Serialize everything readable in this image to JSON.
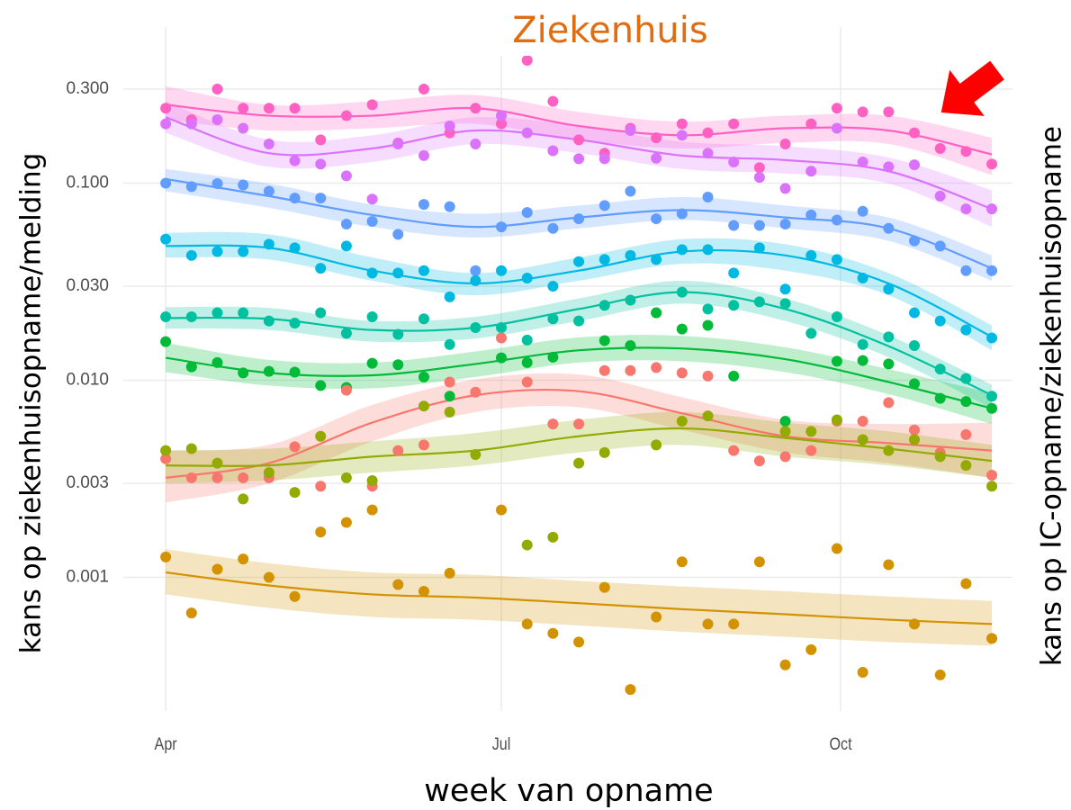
{
  "chart_data": {
    "type": "scatter",
    "title": "Ziekenhuis",
    "x_label": "week van opname",
    "y_label": "kans op ziekenhuisopname/melding",
    "y2_label": "kans op IC-opname/ziekenhuisopname",
    "log_y": true,
    "grid": true,
    "x": [
      0,
      7,
      14,
      21,
      28,
      35,
      42,
      49,
      56,
      63,
      70,
      77,
      84,
      91,
      98,
      105,
      112,
      119,
      126,
      133,
      140,
      147,
      154,
      161,
      168,
      175,
      182,
      189,
      196,
      203,
      210,
      217,
      224
    ],
    "fit_x": [
      0,
      28,
      56,
      84,
      112,
      140,
      168,
      196,
      224
    ],
    "xlim": [
      -11.5,
      229.6
    ],
    "xticks": [
      {
        "value": 0,
        "label": "Apr"
      },
      {
        "value": 91,
        "label": "Jul"
      },
      {
        "value": 183,
        "label": "Oct"
      }
    ],
    "ylim": [
      0.00021,
      0.62
    ],
    "yticks": [
      {
        "value": 0.001,
        "label": "0.001"
      },
      {
        "value": 0.003,
        "label": "0.003"
      },
      {
        "value": 0.01,
        "label": "0.010"
      },
      {
        "value": 0.03,
        "label": "0.030"
      },
      {
        "value": 0.1,
        "label": "0.100"
      },
      {
        "value": 0.3,
        "label": "0.300"
      }
    ],
    "series": [
      {
        "color": "#FF61C3",
        "values": [
          0.24,
          0.21,
          0.3,
          0.24,
          0.24,
          0.24,
          0.166,
          0.22,
          0.25,
          0.16,
          0.3,
          0.18,
          0.24,
          0.2,
          0.42,
          0.26,
          0.166,
          0.142,
          0.19,
          0.17,
          0.2,
          0.18,
          0.2,
          0.12,
          0.158,
          0.2,
          0.24,
          0.23,
          0.23,
          0.18,
          0.15,
          0.145,
          0.125
        ],
        "fit": [
          0.25,
          0.22,
          0.22,
          0.24,
          0.195,
          0.175,
          0.19,
          0.185,
          0.14
        ],
        "fit_lower": [
          0.21,
          0.185,
          0.19,
          0.2,
          0.166,
          0.15,
          0.16,
          0.158,
          0.11
        ],
        "fit_upper": [
          0.31,
          0.25,
          0.26,
          0.28,
          0.23,
          0.205,
          0.22,
          0.22,
          0.17
        ]
      },
      {
        "color": "#DB72FB",
        "values": [
          0.2,
          0.2,
          0.21,
          0.19,
          0.158,
          0.13,
          0.125,
          0.109,
          0.083,
          0.158,
          0.138,
          0.195,
          0.158,
          0.22,
          0.18,
          0.146,
          0.133,
          0.133,
          0.185,
          0.134,
          0.175,
          0.142,
          0.128,
          0.107,
          0.094,
          0.115,
          0.19,
          0.128,
          0.121,
          0.124,
          0.086,
          0.074,
          0.074
        ],
        "fit": [
          0.216,
          0.142,
          0.15,
          0.185,
          0.166,
          0.138,
          0.131,
          0.115,
          0.074
        ],
        "fit_lower": [
          0.18,
          0.121,
          0.128,
          0.158,
          0.142,
          0.118,
          0.112,
          0.0995,
          0.06
        ],
        "fit_upper": [
          0.26,
          0.166,
          0.175,
          0.216,
          0.195,
          0.162,
          0.154,
          0.135,
          0.092
        ]
      },
      {
        "color": "#619CFF",
        "values": [
          0.1,
          0.096,
          0.0995,
          0.098,
          0.091,
          0.084,
          0.084,
          0.062,
          0.064,
          0.055,
          0.078,
          0.076,
          0.036,
          0.06,
          0.071,
          0.059,
          0.066,
          0.077,
          0.091,
          0.066,
          0.07,
          0.085,
          0.061,
          0.061,
          0.062,
          0.069,
          0.065,
          0.072,
          0.059,
          0.051,
          0.048,
          0.036,
          0.036
        ],
        "fit": [
          0.105,
          0.086,
          0.069,
          0.06,
          0.067,
          0.073,
          0.067,
          0.059,
          0.037
        ],
        "fit_lower": [
          0.091,
          0.075,
          0.06,
          0.053,
          0.059,
          0.065,
          0.059,
          0.051,
          0.032
        ],
        "fit_upper": [
          0.118,
          0.0995,
          0.078,
          0.07,
          0.077,
          0.085,
          0.077,
          0.067,
          0.043
        ]
      },
      {
        "color": "#00B9E3",
        "values": [
          0.052,
          0.043,
          0.045,
          0.045,
          0.049,
          0.047,
          0.037,
          0.048,
          0.035,
          0.035,
          0.036,
          0.0265,
          0.032,
          0.036,
          0.033,
          0.03,
          0.04,
          0.041,
          0.043,
          0.041,
          0.046,
          0.046,
          0.035,
          0.047,
          0.029,
          0.043,
          0.041,
          0.033,
          0.029,
          0.022,
          0.02,
          0.018,
          0.0164
        ],
        "fit": [
          0.048,
          0.047,
          0.036,
          0.031,
          0.036,
          0.045,
          0.043,
          0.031,
          0.0166
        ],
        "fit_lower": [
          0.042,
          0.041,
          0.032,
          0.027,
          0.032,
          0.039,
          0.036,
          0.027,
          0.0142
        ],
        "fit_upper": [
          0.056,
          0.055,
          0.042,
          0.035,
          0.042,
          0.052,
          0.049,
          0.035,
          0.019
        ]
      },
      {
        "color": "#00C19F",
        "values": [
          0.021,
          0.021,
          0.022,
          0.022,
          0.02,
          0.0195,
          0.022,
          0.0173,
          0.021,
          0.0171,
          0.0205,
          0.0152,
          0.0185,
          0.0185,
          0.016,
          0.0205,
          0.02,
          0.024,
          0.0255,
          0.022,
          0.028,
          0.023,
          0.024,
          0.025,
          0.0245,
          0.0173,
          0.021,
          0.0152,
          0.0166,
          0.015,
          0.0114,
          0.0102,
          0.0083
        ],
        "fit": [
          0.0207,
          0.0205,
          0.018,
          0.0185,
          0.023,
          0.028,
          0.023,
          0.0149,
          0.0084
        ],
        "fit_lower": [
          0.0183,
          0.018,
          0.0157,
          0.0163,
          0.02,
          0.0245,
          0.02,
          0.0131,
          0.0072
        ],
        "fit_upper": [
          0.0235,
          0.0233,
          0.02,
          0.021,
          0.026,
          0.032,
          0.026,
          0.0169,
          0.0095
        ]
      },
      {
        "color": "#00BA38",
        "values": [
          0.0157,
          0.0117,
          0.0123,
          0.0109,
          0.0111,
          0.011,
          0.0094,
          0.0092,
          0.0122,
          0.012,
          0.0104,
          0.0083,
          null,
          0.013,
          0.0123,
          0.0131,
          null,
          0.0159,
          0.015,
          0.022,
          0.0182,
          0.019,
          0.0105,
          null,
          0.0062,
          null,
          0.0125,
          0.0126,
          0.0121,
          0.0096,
          0.0081,
          0.0078,
          0.0072
        ],
        "fit": [
          0.013,
          0.0109,
          0.0106,
          0.0121,
          0.0142,
          0.0145,
          0.0128,
          0.0098,
          0.0072
        ],
        "fit_lower": [
          0.011,
          0.0094,
          0.0091,
          0.0104,
          0.0123,
          0.0125,
          0.011,
          0.0085,
          0.006
        ],
        "fit_upper": [
          0.0155,
          0.0127,
          0.0123,
          0.014,
          0.0165,
          0.0168,
          0.0147,
          0.0114,
          0.0086
        ]
      },
      {
        "color": "#F8766D",
        "values": [
          0.004,
          0.0032,
          0.0032,
          0.0032,
          0.0032,
          0.0046,
          0.0029,
          0.0089,
          0.0029,
          0.0044,
          0.0047,
          0.0098,
          0.0087,
          0.0164,
          0.0098,
          0.006,
          0.006,
          0.0112,
          0.0112,
          0.0116,
          0.0109,
          0.0105,
          0.0044,
          0.0039,
          0.0041,
          0.0044,
          0.0062,
          0.0062,
          0.0077,
          0.0056,
          0.0043,
          0.0053,
          0.0033
        ],
        "fit": [
          0.0032,
          0.0038,
          0.0061,
          0.0084,
          0.0088,
          0.0068,
          0.0052,
          0.0048,
          0.0044
        ],
        "fit_lower": [
          0.0024,
          0.003,
          0.0049,
          0.0069,
          0.0073,
          0.0056,
          0.0043,
          0.0038,
          0.0032
        ],
        "fit_upper": [
          0.0044,
          0.0047,
          0.0075,
          0.0101,
          0.0107,
          0.0082,
          0.0063,
          0.006,
          0.0061
        ]
      },
      {
        "color": "#93AA00",
        "values": [
          0.0044,
          0.0045,
          0.0038,
          0.0025,
          0.0034,
          0.0027,
          0.0052,
          0.0032,
          0.0031,
          null,
          0.0074,
          0.0069,
          0.0042,
          null,
          0.00146,
          0.0016,
          0.0038,
          0.0043,
          null,
          0.0047,
          0.0062,
          0.0066,
          null,
          null,
          0.0055,
          0.0055,
          0.0063,
          0.005,
          0.0044,
          0.005,
          0.0041,
          0.0037,
          0.0029
        ],
        "fit": [
          0.0037,
          0.0037,
          0.0041,
          0.0044,
          0.0052,
          0.0057,
          0.0051,
          0.0045,
          0.0039
        ],
        "fit_lower": [
          0.003,
          0.0031,
          0.0034,
          0.0037,
          0.0043,
          0.0047,
          0.0041,
          0.0037,
          0.0032
        ],
        "fit_upper": [
          0.0044,
          0.0045,
          0.0049,
          0.0054,
          0.0063,
          0.0069,
          0.0061,
          0.0055,
          0.0047
        ]
      },
      {
        "color": "#D39200",
        "values": [
          0.00127,
          0.00066,
          0.0011,
          0.00124,
          0.001,
          0.0008,
          0.0017,
          0.0019,
          0.0022,
          0.00092,
          0.00085,
          0.00105,
          null,
          0.0022,
          0.00058,
          0.00052,
          0.00047,
          0.00089,
          0.00027,
          0.00063,
          0.0012,
          0.00058,
          0.00058,
          0.0012,
          0.00036,
          0.00043,
          0.0014,
          0.00033,
          0.00116,
          0.00058,
          0.00032,
          0.00093,
          0.00049
        ],
        "fit": [
          0.00106,
          0.00091,
          0.00082,
          0.00079,
          0.00074,
          0.00069,
          0.00065,
          0.00061,
          0.00058
        ],
        "fit_lower": [
          0.00082,
          0.0007,
          0.00063,
          0.00061,
          0.00057,
          0.00053,
          0.0005,
          0.00047,
          0.00045
        ],
        "fit_upper": [
          0.00139,
          0.00118,
          0.00106,
          0.00103,
          0.00096,
          0.0009,
          0.00085,
          0.0008,
          0.00076
        ]
      }
    ]
  }
}
